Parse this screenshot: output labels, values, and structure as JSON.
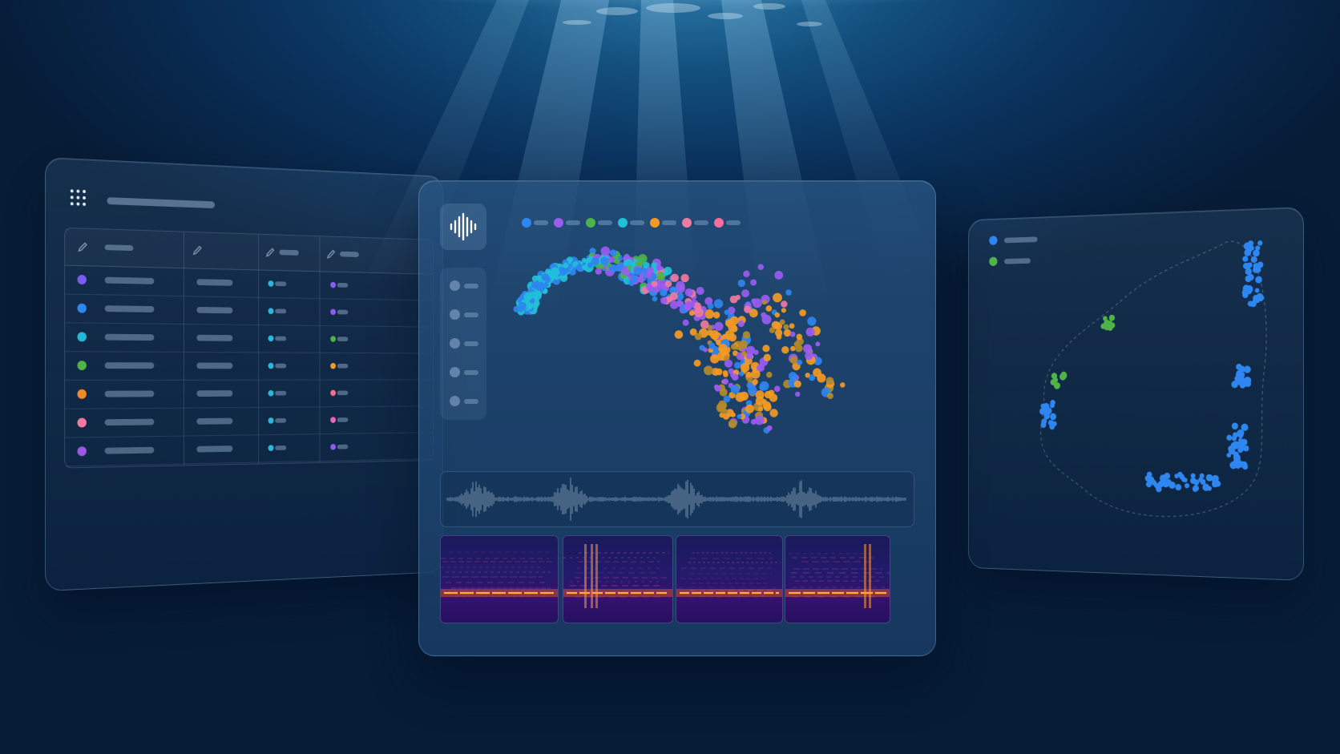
{
  "theme": {
    "background": "#0b3561",
    "accent": "#2f7fb0",
    "panel_border": "#a9d1f5"
  },
  "left_panel": {
    "menu_icon": "grid-icon",
    "header_icons": [
      "pencil-icon",
      "pencil-icon",
      "pencil-icon",
      "pencil-icon"
    ],
    "rows": [
      {
        "color": "#7b5cf0",
        "tag1": "#2bb7d9",
        "tag2": "#8b5cf0"
      },
      {
        "color": "#2e86f0",
        "tag1": "#2bb7d9",
        "tag2": "#8b5cf0"
      },
      {
        "color": "#22b8d6",
        "tag1": "#2bb7d9",
        "tag2": "#4cb34a"
      },
      {
        "color": "#4fb348",
        "tag1": "#2bb7d9",
        "tag2": "#f39a24"
      },
      {
        "color": "#f08a24",
        "tag1": "#2bb7d9",
        "tag2": "#f0708a"
      },
      {
        "color": "#f07aa0",
        "tag1": "#2bb7d9",
        "tag2": "#e868b8"
      },
      {
        "color": "#9b57e6",
        "tag1": "#2bb7d9",
        "tag2": "#8b5cf0"
      }
    ]
  },
  "center_panel": {
    "app_icon": "waveform-icon",
    "side_items": 5,
    "legend_colors": [
      "#2e86f0",
      "#9b5cf0",
      "#4cb34a",
      "#22c0d8",
      "#f39a24",
      "#f07aa0",
      "#f46f9e"
    ],
    "spectrogram_panels": 4,
    "waveform_icon": "audio-waveform"
  },
  "right_panel": {
    "legend_colors": [
      "#2e86f0",
      "#4fb348"
    ]
  },
  "chart_data": [
    {
      "type": "scatter",
      "description_free": true,
      "series_colors": [
        "#2e86f0",
        "#9b5cf0",
        "#4cb34a",
        "#22c0d8",
        "#f39a24",
        "#f07aa0"
      ],
      "grid": false,
      "legend": "top-left"
    },
    {
      "type": "scatter",
      "series_colors": [
        "#2e86f0",
        "#4fb348"
      ],
      "grid": false,
      "legend": "top-left"
    }
  ]
}
